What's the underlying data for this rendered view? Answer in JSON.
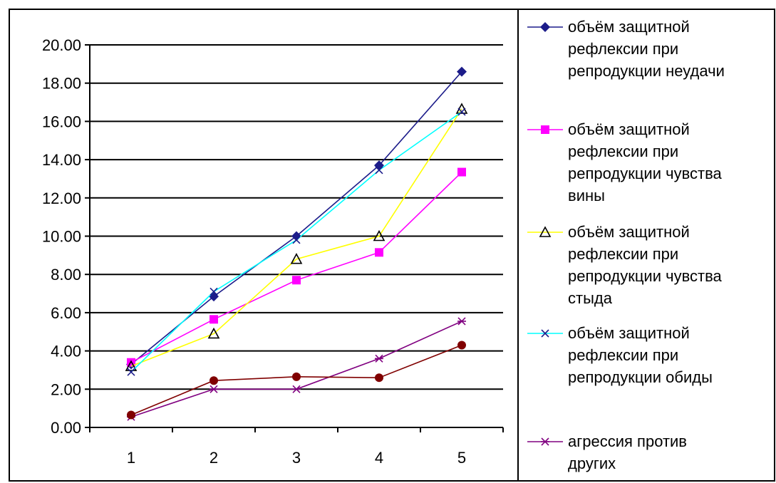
{
  "chart_data": {
    "type": "line",
    "title": "",
    "xlabel": "",
    "ylabel": "",
    "x": [
      1,
      2,
      3,
      4,
      5
    ],
    "ylim": [
      0,
      20
    ],
    "yticks": [
      "0.00",
      "2.00",
      "4.00",
      "6.00",
      "8.00",
      "10.00",
      "12.00",
      "14.00",
      "16.00",
      "18.00",
      "20.00"
    ],
    "grid": "horizontal",
    "legend_position": "right",
    "series": [
      {
        "name": "объём защитной рефлексии при репродукции неудачи",
        "legend_lines": [
          "объём защитной",
          "рефлексии при",
          "репродукции неудачи"
        ],
        "values": [
          3.3,
          6.85,
          10.0,
          13.7,
          18.6
        ],
        "line_color": "#1c1c8a",
        "marker": "diamond",
        "marker_color": "#1c1c8a"
      },
      {
        "name": "объём защитной рефлексии при репродукции чувства вины",
        "legend_lines": [
          "объём защитной",
          "рефлексии при",
          "репродукции чувства",
          "вины"
        ],
        "values": [
          3.4,
          5.65,
          7.7,
          9.15,
          13.35
        ],
        "line_color": "#ff00ff",
        "marker": "square",
        "marker_color": "#ff00ff"
      },
      {
        "name": "объём защитной рефлексии при репродукции чувства стыда",
        "legend_lines": [
          "объём защитной",
          "рефлексии при",
          "репродукции чувства",
          "стыда"
        ],
        "values": [
          3.2,
          4.9,
          8.8,
          10.0,
          16.65
        ],
        "line_color": "#ffff00",
        "marker": "triangle",
        "marker_color": "#000000"
      },
      {
        "name": "объём защитной рефлексии при репродукции обиды",
        "legend_lines": [
          "объём защитной",
          "рефлексии при",
          "репродукции обиды"
        ],
        "values": [
          2.9,
          7.1,
          9.8,
          13.45,
          16.5
        ],
        "line_color": "#00ffff",
        "marker": "x",
        "marker_color": "#1c1c8a"
      },
      {
        "name": "агрессия против других",
        "legend_lines": [
          "агрессия против",
          "других"
        ],
        "values": [
          0.55,
          2.0,
          2.0,
          3.6,
          5.55
        ],
        "line_color": "#800080",
        "marker": "asterisk",
        "marker_color": "#800080"
      },
      {
        "name": "",
        "legend_lines": [],
        "values": [
          0.65,
          2.45,
          2.65,
          2.6,
          4.3
        ],
        "line_color": "#800000",
        "marker": "circle",
        "marker_color": "#800000"
      }
    ]
  }
}
